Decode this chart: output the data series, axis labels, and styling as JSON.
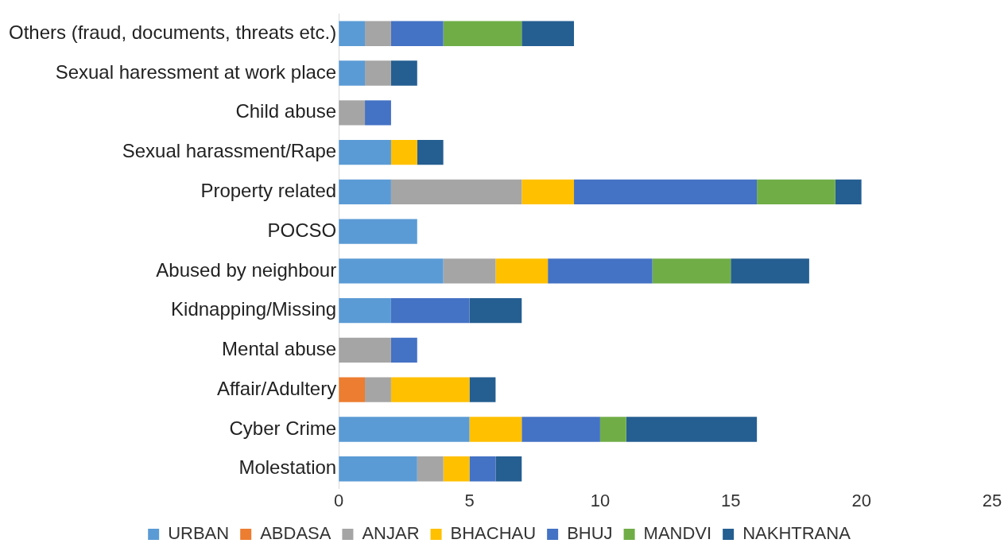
{
  "chart_data": {
    "type": "bar",
    "orientation": "horizontal",
    "stacked": true,
    "categories": [
      "Others (fraud, documents, threats etc.)",
      "Sexual haressment at work place",
      "Child abuse",
      "Sexual harassment/Rape",
      "Property related",
      "POCSO",
      "Abused by neighbour",
      "Kidnapping/Missing",
      "Mental abuse",
      "Affair/Adultery",
      "Cyber Crime",
      "Molestation"
    ],
    "series": [
      {
        "name": "URBAN",
        "color": "#5b9bd5",
        "values": [
          1,
          1,
          null,
          2,
          2,
          3,
          4,
          2,
          null,
          null,
          5,
          3
        ]
      },
      {
        "name": "ABDASA",
        "color": "#ed7d31",
        "values": [
          null,
          null,
          null,
          null,
          null,
          null,
          null,
          null,
          null,
          1,
          null,
          null
        ]
      },
      {
        "name": "ANJAR",
        "color": "#a5a5a5",
        "values": [
          1,
          1,
          1,
          null,
          5,
          null,
          2,
          null,
          2,
          1,
          null,
          1
        ]
      },
      {
        "name": "BHACHAU",
        "color": "#ffc000",
        "values": [
          null,
          null,
          null,
          1,
          2,
          null,
          2,
          null,
          null,
          3,
          2,
          1
        ]
      },
      {
        "name": "BHUJ",
        "color": "#4472c4",
        "values": [
          2,
          null,
          1,
          null,
          7,
          null,
          4,
          3,
          1,
          null,
          3,
          1
        ]
      },
      {
        "name": "MANDVI",
        "color": "#70ad47",
        "values": [
          3,
          null,
          null,
          null,
          3,
          null,
          3,
          null,
          null,
          null,
          1,
          null
        ]
      },
      {
        "name": "NAKHTRANA",
        "color": "#255e91",
        "values": [
          2,
          1,
          null,
          1,
          1,
          null,
          3,
          2,
          null,
          1,
          5,
          1
        ]
      }
    ],
    "xlim": [
      0,
      25
    ],
    "xticks": [
      0,
      5,
      10,
      15,
      20,
      25
    ],
    "grid": false,
    "legend": "bottom"
  }
}
